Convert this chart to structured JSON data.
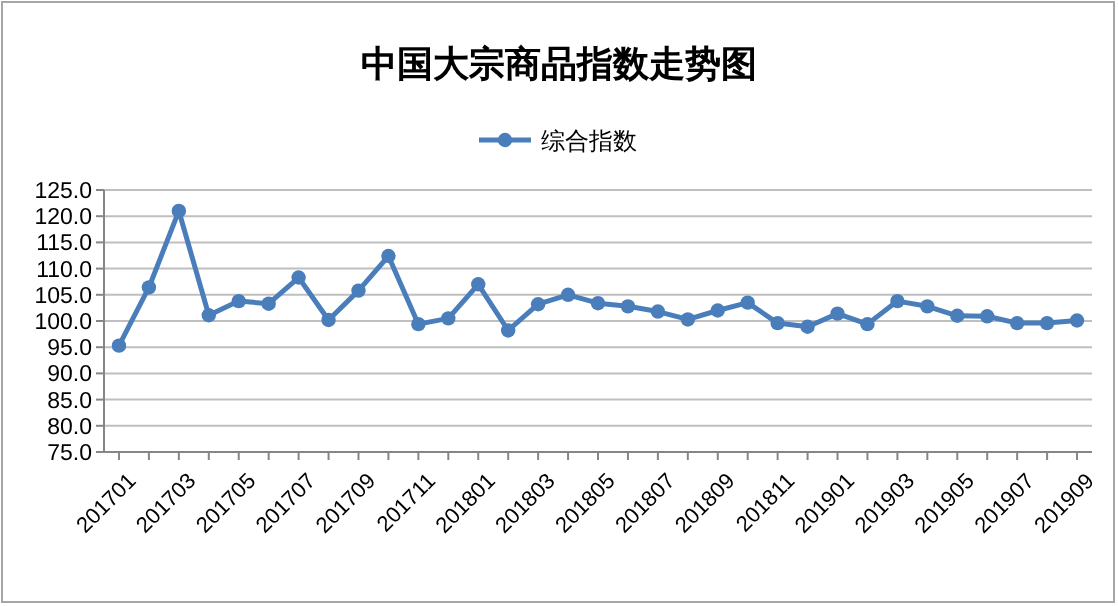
{
  "chart_data": {
    "type": "line",
    "title": "中国大宗商品指数走势图",
    "categories": [
      "201701",
      null,
      "201703",
      null,
      "201705",
      null,
      "201707",
      null,
      "201709",
      null,
      "201711",
      null,
      "201801",
      null,
      "201803",
      null,
      "201805",
      null,
      "201807",
      null,
      "201809",
      null,
      "201811",
      null,
      "201901",
      null,
      "201903",
      null,
      "201905",
      null,
      "201907",
      null,
      "201909"
    ],
    "series": [
      {
        "name": "综合指数",
        "color": "#4a7ebb",
        "values": [
          95.3,
          106.4,
          121.0,
          101.1,
          103.8,
          103.3,
          108.3,
          100.2,
          105.8,
          112.4,
          99.4,
          100.5,
          107.0,
          98.2,
          103.2,
          105.0,
          103.4,
          102.8,
          101.8,
          100.3,
          102.0,
          103.5,
          99.6,
          98.9,
          101.4,
          99.4,
          103.8,
          102.8,
          101.0,
          100.9,
          99.6,
          99.6,
          100.1
        ]
      }
    ],
    "ylim": [
      75,
      125
    ],
    "yticks": [
      {
        "value": 75,
        "label": "75.0"
      },
      {
        "value": 80,
        "label": "80.0"
      },
      {
        "value": 85,
        "label": "85.0"
      },
      {
        "value": 90,
        "label": "90.0"
      },
      {
        "value": 95,
        "label": "95.0"
      },
      {
        "value": 100,
        "label": "100.0"
      },
      {
        "value": 105,
        "label": "105.0"
      },
      {
        "value": 110,
        "label": "110.0"
      },
      {
        "value": 115,
        "label": "115.0"
      },
      {
        "value": 120,
        "label": "120.0"
      },
      {
        "value": 125,
        "label": "125.0"
      }
    ],
    "grid": "y",
    "legend": "top",
    "marker": "circle",
    "line_style": "solid"
  }
}
